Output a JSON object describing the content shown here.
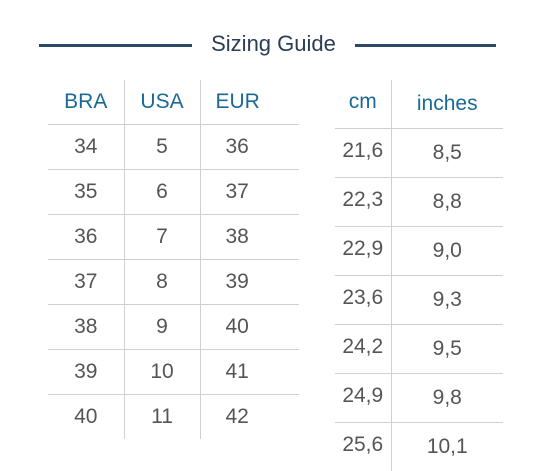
{
  "title": "Sizing Guide",
  "colors": {
    "heading": "#2c3e55",
    "column_header": "#1a6a95",
    "rule": "#2c4868",
    "text": "#555555",
    "grid": "#d0d0d0"
  },
  "left_table": {
    "headers": [
      "BRA",
      "USA",
      "EUR"
    ],
    "rows": [
      [
        "34",
        "5",
        "36"
      ],
      [
        "35",
        "6",
        "37"
      ],
      [
        "36",
        "7",
        "38"
      ],
      [
        "37",
        "8",
        "39"
      ],
      [
        "38",
        "9",
        "40"
      ],
      [
        "39",
        "10",
        "41"
      ],
      [
        "40",
        "11",
        "42"
      ]
    ]
  },
  "right_table": {
    "headers": [
      "cm",
      "inches"
    ],
    "rows": [
      [
        "21,6",
        "8,5"
      ],
      [
        "22,3",
        "8,8"
      ],
      [
        "22,9",
        "9,0"
      ],
      [
        "23,6",
        "9,3"
      ],
      [
        "24,2",
        "9,5"
      ],
      [
        "24,9",
        "9,8"
      ],
      [
        "25,6",
        "10,1"
      ]
    ]
  }
}
